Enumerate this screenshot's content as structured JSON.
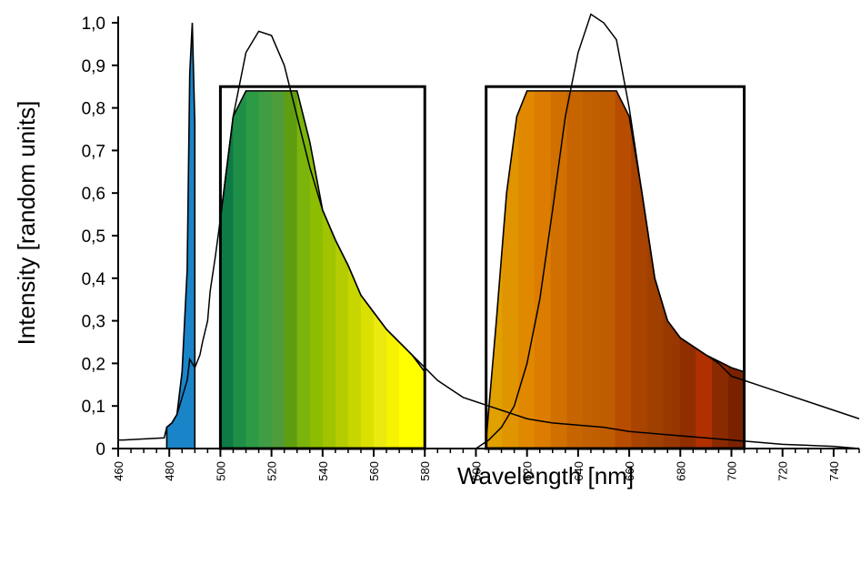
{
  "chart_data": {
    "type": "area",
    "xlabel": "Wavelength [nm]",
    "ylabel": "Intensity [random units]",
    "xlim": [
      460,
      750
    ],
    "ylim": [
      0,
      1.0
    ],
    "grid": false,
    "y_ticks": [
      0,
      0.1,
      0.2,
      0.3,
      0.4,
      0.5,
      0.6,
      0.7,
      0.8,
      0.9,
      1.0
    ],
    "y_tick_labels": [
      "0",
      "0,1",
      "0,2",
      "0,3",
      "0,4",
      "0,5",
      "0,6",
      "0,7",
      "0,8",
      "0,9",
      "1,0"
    ],
    "x_ticks": [
      460,
      480,
      500,
      520,
      540,
      560,
      580,
      600,
      620,
      640,
      660,
      680,
      700,
      720,
      740
    ],
    "x_tick_labels": [
      "460",
      "480",
      "500",
      "520",
      "540",
      "560",
      "580",
      "600",
      "620",
      "640",
      "660",
      "680",
      "700",
      "720",
      "740"
    ],
    "series": [
      {
        "x": [
          460,
          462,
          478,
          479,
          481,
          483,
          485,
          487,
          488,
          490,
          492,
          493,
          495,
          496,
          498,
          500,
          505,
          510,
          515,
          520,
          525,
          530,
          535,
          540,
          545,
          550,
          555,
          560,
          565,
          570,
          575,
          580,
          585,
          590,
          595,
          600,
          605,
          610,
          615,
          620,
          625,
          630,
          640,
          650,
          660,
          680,
          700,
          720,
          740,
          750
        ],
        "y": [
          0.02,
          0.02,
          0.025,
          0.05,
          0.06,
          0.08,
          0.12,
          0.16,
          0.21,
          0.19,
          0.22,
          0.25,
          0.3,
          0.37,
          0.45,
          0.54,
          0.78,
          0.93,
          0.98,
          0.97,
          0.9,
          0.78,
          0.66,
          0.56,
          0.49,
          0.43,
          0.36,
          0.32,
          0.28,
          0.25,
          0.22,
          0.19,
          0.16,
          0.14,
          0.12,
          0.11,
          0.1,
          0.09,
          0.08,
          0.07,
          0.065,
          0.06,
          0.055,
          0.05,
          0.04,
          0.03,
          0.02,
          0.01,
          0.005,
          0.0
        ]
      },
      {
        "x": [
          460,
          600,
          605,
          610,
          615,
          620,
          625,
          630,
          635,
          640,
          645,
          650,
          655,
          660,
          665,
          670,
          675,
          680,
          685,
          690,
          695,
          700,
          705,
          710,
          720,
          730,
          740,
          750
        ],
        "y": [
          0.0,
          0.0,
          0.02,
          0.05,
          0.1,
          0.2,
          0.35,
          0.56,
          0.78,
          0.93,
          1.02,
          1.0,
          0.96,
          0.8,
          0.6,
          0.4,
          0.3,
          0.26,
          0.24,
          0.22,
          0.2,
          0.17,
          0.16,
          0.15,
          0.13,
          0.11,
          0.09,
          0.07
        ]
      }
    ],
    "filled_bands": [
      {
        "x": [
          479,
          481,
          483,
          485,
          487,
          488,
          489,
          490
        ],
        "y": [
          0.05,
          0.06,
          0.08,
          0.18,
          0.42,
          0.88,
          1.0,
          0.76
        ],
        "x_range": [
          479,
          492
        ],
        "colors": [
          "#1a84c8"
        ]
      },
      {
        "x": [
          500,
          505,
          510,
          515,
          520,
          525,
          530,
          535,
          540,
          545,
          550,
          555,
          560,
          565,
          570,
          575,
          580
        ],
        "y": [
          0.54,
          0.78,
          0.84,
          0.84,
          0.84,
          0.84,
          0.84,
          0.72,
          0.56,
          0.49,
          0.43,
          0.36,
          0.32,
          0.28,
          0.25,
          0.22,
          0.18
        ],
        "x_range": [
          500,
          580
        ],
        "colors": [
          "#0e7a46",
          "#1f8f48",
          "#2d9a46",
          "#3f9e44",
          "#4f9c3a",
          "#5e9e10",
          "#7ab40c",
          "#8cbd00",
          "#a0c400",
          "#b4cc00",
          "#c8d600",
          "#dce000",
          "#eaea10",
          "#f6f200",
          "#ffff00",
          "#ffff00"
        ]
      },
      {
        "x": [
          604,
          608,
          612,
          616,
          620,
          625,
          630,
          635,
          640,
          645,
          650,
          655,
          660,
          665,
          670,
          675,
          680,
          690,
          700,
          705
        ],
        "y": [
          0.02,
          0.3,
          0.6,
          0.78,
          0.84,
          0.84,
          0.84,
          0.84,
          0.84,
          0.84,
          0.84,
          0.84,
          0.78,
          0.6,
          0.4,
          0.3,
          0.26,
          0.22,
          0.19,
          0.18
        ],
        "x_range": [
          604,
          705
        ],
        "colors": [
          "#e0a000",
          "#e09400",
          "#e08800",
          "#dc7c00",
          "#d07000",
          "#c66400",
          "#c06000",
          "#c05c00",
          "#b84c00",
          "#a84400",
          "#a04000",
          "#983800",
          "#902e00",
          "#b03000",
          "#8a2a00",
          "#7a2200"
        ]
      }
    ],
    "annotations": [
      {
        "type": "rect",
        "x_range": [
          500,
          580
        ],
        "y_range": [
          0,
          0.85
        ]
      },
      {
        "type": "rect",
        "x_range": [
          604,
          705
        ],
        "y_range": [
          0,
          0.85
        ]
      }
    ]
  }
}
